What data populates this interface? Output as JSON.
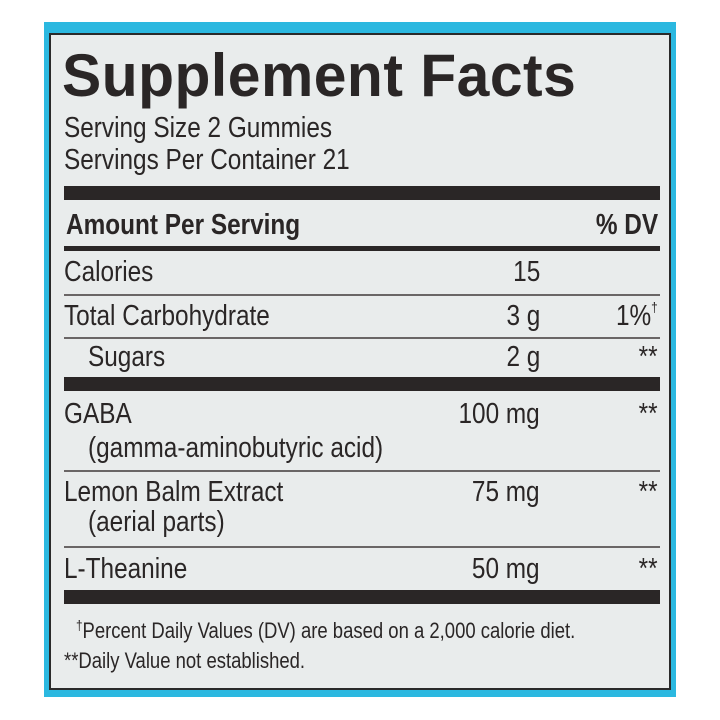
{
  "title": "Supplement Facts",
  "serving_size": "Serving Size 2 Gummies",
  "servings_per_container": "Servings Per Container 21",
  "header": {
    "amount": "Amount Per Serving",
    "dv": "% DV"
  },
  "rows": [
    {
      "name": "Calories",
      "sub": "",
      "amount": "15",
      "dv": ""
    },
    {
      "name": "Total Carbohydrate",
      "sub": "",
      "amount": "3 g",
      "dv": "1%",
      "dv_mark": "†"
    },
    {
      "name": "Sugars",
      "sub": "",
      "amount": "2 g",
      "dv": "**"
    },
    {
      "name": "GABA",
      "sub": "(gamma-aminobutyric acid)",
      "amount": "100 mg",
      "dv": "**"
    },
    {
      "name": "Lemon Balm Extract",
      "sub": "(aerial parts)",
      "amount": "75 mg",
      "dv": "**"
    },
    {
      "name": "L-Theanine",
      "sub": "",
      "amount": "50 mg",
      "dv": "**"
    }
  ],
  "footnotes": {
    "dagger_mark": "†",
    "dagger": "Percent Daily Values (DV) are based on a 2,000 calorie diet.",
    "stars": "**Daily Value not established."
  },
  "colors": {
    "band": "#2bb8e0",
    "panel": "#e9ecec",
    "ink": "#2a2626"
  }
}
